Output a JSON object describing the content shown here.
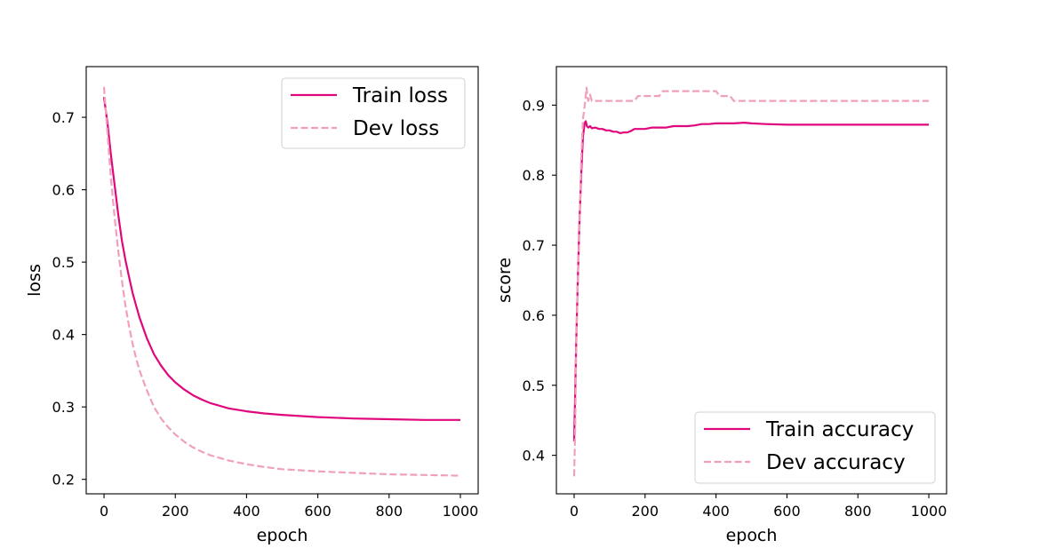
{
  "chart_data": [
    {
      "type": "line",
      "title": "",
      "xlabel": "epoch",
      "ylabel": "loss",
      "xlim": [
        -50,
        1050
      ],
      "ylim": [
        0.18,
        0.77
      ],
      "xticks": [
        0,
        200,
        400,
        600,
        800,
        1000
      ],
      "xtick_labels": [
        "0",
        "200",
        "400",
        "600",
        "800",
        "1000"
      ],
      "yticks": [
        0.2,
        0.3,
        0.4,
        0.5,
        0.6,
        0.7
      ],
      "ytick_labels": [
        "0.2",
        "0.3",
        "0.4",
        "0.5",
        "0.6",
        "0.7"
      ],
      "grid": false,
      "legend_position": "upper-right",
      "series": [
        {
          "name": "Train loss",
          "style": "solid",
          "color": "#e0077d",
          "x": [
            0,
            10,
            20,
            30,
            40,
            50,
            60,
            70,
            80,
            90,
            100,
            120,
            140,
            160,
            180,
            200,
            225,
            250,
            275,
            300,
            350,
            400,
            450,
            500,
            600,
            700,
            800,
            900,
            1000
          ],
          "y": [
            0.728,
            0.69,
            0.645,
            0.605,
            0.565,
            0.53,
            0.503,
            0.48,
            0.458,
            0.44,
            0.423,
            0.395,
            0.373,
            0.357,
            0.344,
            0.334,
            0.324,
            0.316,
            0.31,
            0.305,
            0.298,
            0.294,
            0.291,
            0.289,
            0.286,
            0.284,
            0.283,
            0.282,
            0.282
          ]
        },
        {
          "name": "Dev loss",
          "style": "dashed",
          "color": "#f0a0bc",
          "x": [
            0,
            10,
            20,
            30,
            40,
            50,
            60,
            70,
            80,
            90,
            100,
            120,
            140,
            160,
            180,
            200,
            225,
            250,
            275,
            300,
            350,
            400,
            450,
            500,
            600,
            700,
            800,
            900,
            1000
          ],
          "y": [
            0.742,
            0.675,
            0.612,
            0.56,
            0.515,
            0.475,
            0.44,
            0.412,
            0.388,
            0.367,
            0.35,
            0.323,
            0.3,
            0.284,
            0.272,
            0.262,
            0.252,
            0.244,
            0.238,
            0.233,
            0.226,
            0.221,
            0.217,
            0.214,
            0.211,
            0.209,
            0.207,
            0.206,
            0.205
          ]
        }
      ]
    },
    {
      "type": "line",
      "title": "",
      "xlabel": "epoch",
      "ylabel": "score",
      "xlim": [
        -50,
        1050
      ],
      "ylim": [
        0.345,
        0.955
      ],
      "xticks": [
        0,
        200,
        400,
        600,
        800,
        1000
      ],
      "xtick_labels": [
        "0",
        "200",
        "400",
        "600",
        "800",
        "1000"
      ],
      "yticks": [
        0.4,
        0.5,
        0.6,
        0.7,
        0.8,
        0.9
      ],
      "ytick_labels": [
        "0.4",
        "0.5",
        "0.6",
        "0.7",
        "0.8",
        "0.9"
      ],
      "grid": false,
      "legend_position": "lower-right",
      "series": [
        {
          "name": "Train accuracy",
          "style": "solid",
          "color": "#e0077d",
          "x": [
            0,
            3,
            6,
            10,
            15,
            20,
            25,
            30,
            33,
            36,
            40,
            45,
            50,
            60,
            70,
            80,
            90,
            100,
            110,
            120,
            130,
            140,
            150,
            160,
            170,
            180,
            200,
            220,
            240,
            260,
            280,
            300,
            320,
            340,
            360,
            380,
            400,
            450,
            480,
            500,
            540,
            600,
            700,
            800,
            900,
            1000
          ],
          "y": [
            0.42,
            0.49,
            0.56,
            0.64,
            0.73,
            0.8,
            0.855,
            0.875,
            0.877,
            0.87,
            0.868,
            0.87,
            0.867,
            0.868,
            0.866,
            0.866,
            0.864,
            0.864,
            0.862,
            0.862,
            0.86,
            0.861,
            0.861,
            0.863,
            0.866,
            0.866,
            0.866,
            0.868,
            0.868,
            0.868,
            0.87,
            0.87,
            0.87,
            0.871,
            0.873,
            0.873,
            0.874,
            0.874,
            0.875,
            0.874,
            0.873,
            0.872,
            0.872,
            0.872,
            0.872,
            0.872
          ]
        },
        {
          "name": "Dev accuracy",
          "style": "dashed",
          "color": "#f0a0bc",
          "x": [
            0,
            3,
            6,
            10,
            15,
            20,
            25,
            30,
            35,
            38,
            40,
            45,
            50,
            60,
            100,
            140,
            150,
            170,
            180,
            200,
            230,
            240,
            250,
            300,
            350,
            400,
            410,
            440,
            450,
            500,
            600,
            700,
            800,
            900,
            1000
          ],
          "y": [
            0.37,
            0.44,
            0.55,
            0.64,
            0.72,
            0.82,
            0.88,
            0.9,
            0.925,
            0.91,
            0.906,
            0.915,
            0.906,
            0.906,
            0.906,
            0.906,
            0.906,
            0.906,
            0.913,
            0.913,
            0.913,
            0.913,
            0.92,
            0.92,
            0.92,
            0.92,
            0.913,
            0.913,
            0.906,
            0.906,
            0.906,
            0.906,
            0.906,
            0.906,
            0.906
          ]
        }
      ]
    }
  ]
}
